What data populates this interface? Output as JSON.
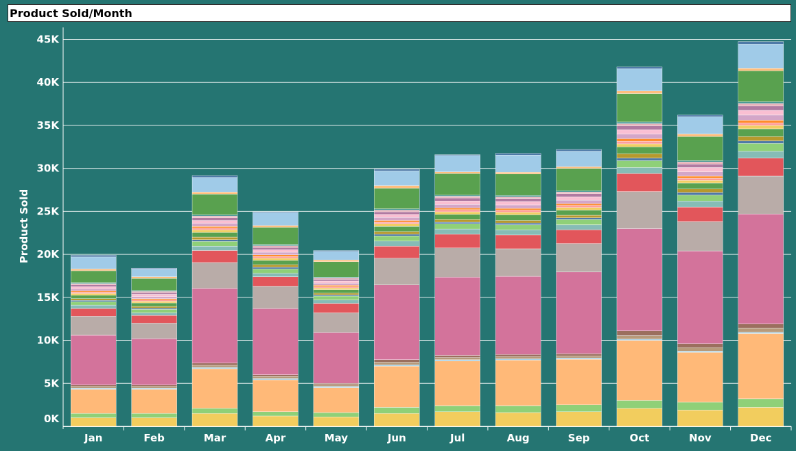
{
  "title": "Product Sold/Month",
  "chart_data": {
    "type": "bar",
    "stacked": true,
    "title": "Product Sold/Month",
    "xlabel": "",
    "ylabel": "Product Sold",
    "ylim": [
      0,
      45000
    ],
    "y_ticks": [
      0,
      5000,
      10000,
      15000,
      20000,
      25000,
      30000,
      35000,
      40000,
      45000
    ],
    "y_tick_labels": [
      "0K",
      "5K",
      "10K",
      "15K",
      "20K",
      "25K",
      "30K",
      "35K",
      "40K",
      "45K"
    ],
    "grid": true,
    "legend": "none",
    "background": "#257572",
    "categories": [
      "Jan",
      "Feb",
      "Mar",
      "Apr",
      "May",
      "Jun",
      "Jul",
      "Aug",
      "Sep",
      "Oct",
      "Nov",
      "Dec"
    ],
    "series": [
      {
        "color": "#f2cd5e",
        "values": [
          1000,
          1000,
          1500,
          1200,
          1100,
          1500,
          1700,
          1600,
          1700,
          2100,
          1900,
          2200
        ]
      },
      {
        "color": "#8fd078",
        "values": [
          500,
          500,
          600,
          500,
          500,
          700,
          700,
          800,
          800,
          900,
          900,
          1000
        ]
      },
      {
        "color": "#ffb978",
        "values": [
          2800,
          2800,
          4600,
          3700,
          2900,
          4800,
          5200,
          5300,
          5300,
          7000,
          5800,
          7600
        ]
      },
      {
        "color": "#a8d2e8",
        "values": [
          150,
          150,
          150,
          150,
          150,
          150,
          150,
          150,
          150,
          150,
          150,
          150
        ]
      },
      {
        "color": "#b79a7a",
        "values": [
          200,
          200,
          250,
          250,
          200,
          300,
          250,
          250,
          250,
          400,
          400,
          450
        ]
      },
      {
        "color": "#9b6f5e",
        "values": [
          150,
          150,
          250,
          200,
          150,
          300,
          250,
          250,
          250,
          550,
          450,
          500
        ]
      },
      {
        "color": "#d3739b",
        "values": [
          5800,
          5400,
          8700,
          7700,
          5900,
          8700,
          9100,
          9100,
          9500,
          11900,
          10800,
          12800
        ]
      },
      {
        "color": "#b9aca8",
        "values": [
          2200,
          1800,
          3000,
          2600,
          2300,
          3100,
          3400,
          3200,
          3300,
          4300,
          3400,
          4400
        ]
      },
      {
        "color": "#e2565b",
        "values": [
          900,
          900,
          1400,
          1100,
          1100,
          1400,
          1600,
          1600,
          1600,
          2100,
          1700,
          2100
        ]
      },
      {
        "color": "#86bcb6",
        "values": [
          400,
          300,
          500,
          400,
          400,
          600,
          600,
          600,
          600,
          700,
          700,
          800
        ]
      },
      {
        "color": "#8fd078",
        "values": [
          400,
          400,
          550,
          500,
          450,
          600,
          600,
          600,
          600,
          800,
          700,
          900
        ]
      },
      {
        "color": "#4e79a7",
        "values": [
          150,
          150,
          200,
          200,
          150,
          200,
          200,
          200,
          200,
          300,
          300,
          300
        ]
      },
      {
        "color": "#b6992d",
        "values": [
          200,
          200,
          300,
          300,
          200,
          300,
          300,
          300,
          300,
          500,
          400,
          500
        ]
      },
      {
        "color": "#59a14f",
        "values": [
          400,
          400,
          550,
          500,
          400,
          600,
          600,
          650,
          600,
          800,
          700,
          900
        ]
      },
      {
        "color": "#f1ce63",
        "values": [
          200,
          200,
          300,
          250,
          200,
          300,
          300,
          300,
          300,
          350,
          300,
          400
        ]
      },
      {
        "color": "#ff9d9a",
        "values": [
          150,
          150,
          200,
          200,
          150,
          200,
          250,
          250,
          250,
          300,
          250,
          300
        ]
      },
      {
        "color": "#ff8c2a",
        "values": [
          150,
          150,
          200,
          200,
          150,
          200,
          200,
          200,
          200,
          300,
          250,
          300
        ]
      },
      {
        "color": "#d4a6c8",
        "values": [
          250,
          250,
          350,
          300,
          250,
          350,
          400,
          400,
          400,
          550,
          500,
          600
        ]
      },
      {
        "color": "#fabfd2",
        "values": [
          250,
          250,
          350,
          300,
          250,
          350,
          400,
          400,
          400,
          500,
          500,
          550
        ]
      },
      {
        "color": "#b07aa1",
        "values": [
          200,
          200,
          300,
          250,
          200,
          300,
          350,
          350,
          350,
          450,
          400,
          500
        ]
      },
      {
        "color": "#e8b0b8",
        "values": [
          150,
          150,
          200,
          200,
          150,
          200,
          200,
          200,
          200,
          250,
          250,
          300
        ]
      },
      {
        "color": "#499894",
        "values": [
          100,
          100,
          150,
          150,
          100,
          150,
          150,
          150,
          150,
          200,
          150,
          200
        ]
      },
      {
        "color": "#59a14f",
        "values": [
          1400,
          1400,
          2400,
          2000,
          1800,
          2400,
          2500,
          2500,
          2600,
          3300,
          2800,
          3600
        ]
      },
      {
        "color": "#ffbe7d",
        "values": [
          200,
          200,
          250,
          200,
          200,
          300,
          200,
          200,
          200,
          300,
          300,
          300
        ]
      },
      {
        "color": "#a0cbe8",
        "values": [
          1400,
          900,
          1700,
          1500,
          1000,
          1700,
          1900,
          2000,
          1800,
          2600,
          2000,
          2800
        ]
      },
      {
        "color": "#4e79a7",
        "values": [
          200,
          100,
          200,
          100,
          100,
          200,
          100,
          200,
          200,
          200,
          200,
          300
        ]
      }
    ]
  }
}
